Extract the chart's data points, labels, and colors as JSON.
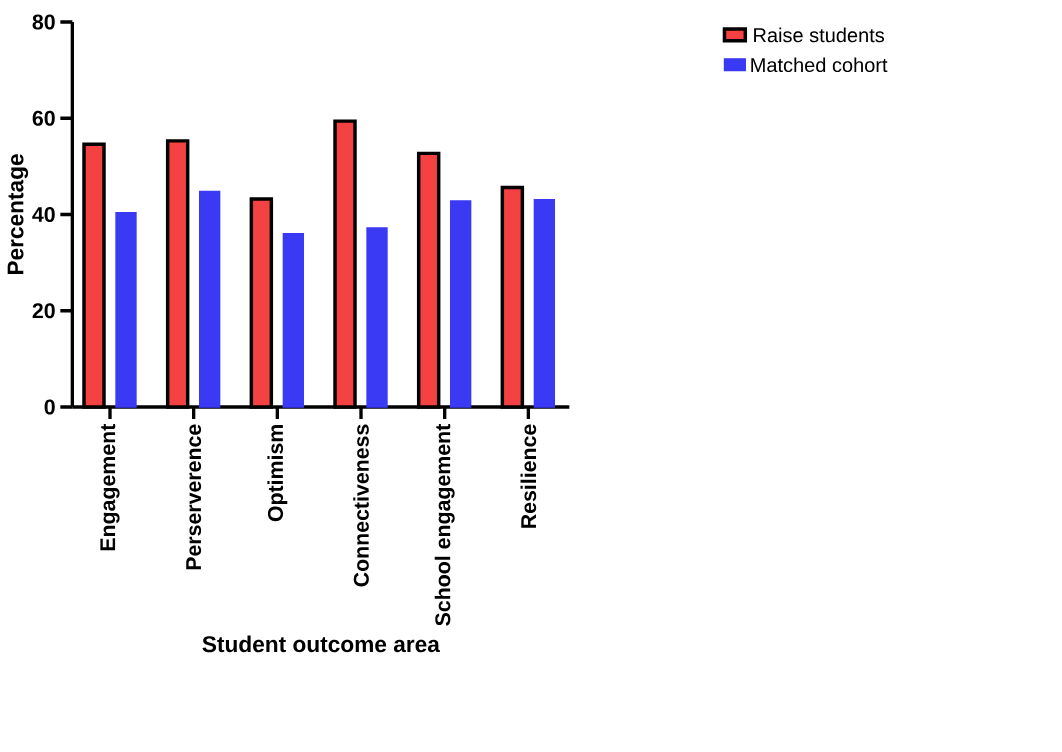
{
  "chart_data": {
    "type": "bar",
    "xlabel": "Student outcome area",
    "ylabel": "Percentage",
    "categories": [
      "Engagement",
      "Perserverence",
      "Optimism",
      "Connectiveness",
      "School engagement",
      "Resilience"
    ],
    "series": [
      {
        "name": "Raise students",
        "color": "#f44242",
        "values": [
          54.6,
          55.3,
          43.2,
          59.4,
          52.7,
          45.6
        ]
      },
      {
        "name": "Matched cohort",
        "color": "#3a3af5",
        "values": [
          40.4,
          44.8,
          36.0,
          37.2,
          42.8,
          43.1
        ]
      }
    ],
    "ylim": [
      0,
      80
    ],
    "yticks": [
      0,
      20,
      40,
      60,
      80
    ],
    "legend": "right"
  }
}
